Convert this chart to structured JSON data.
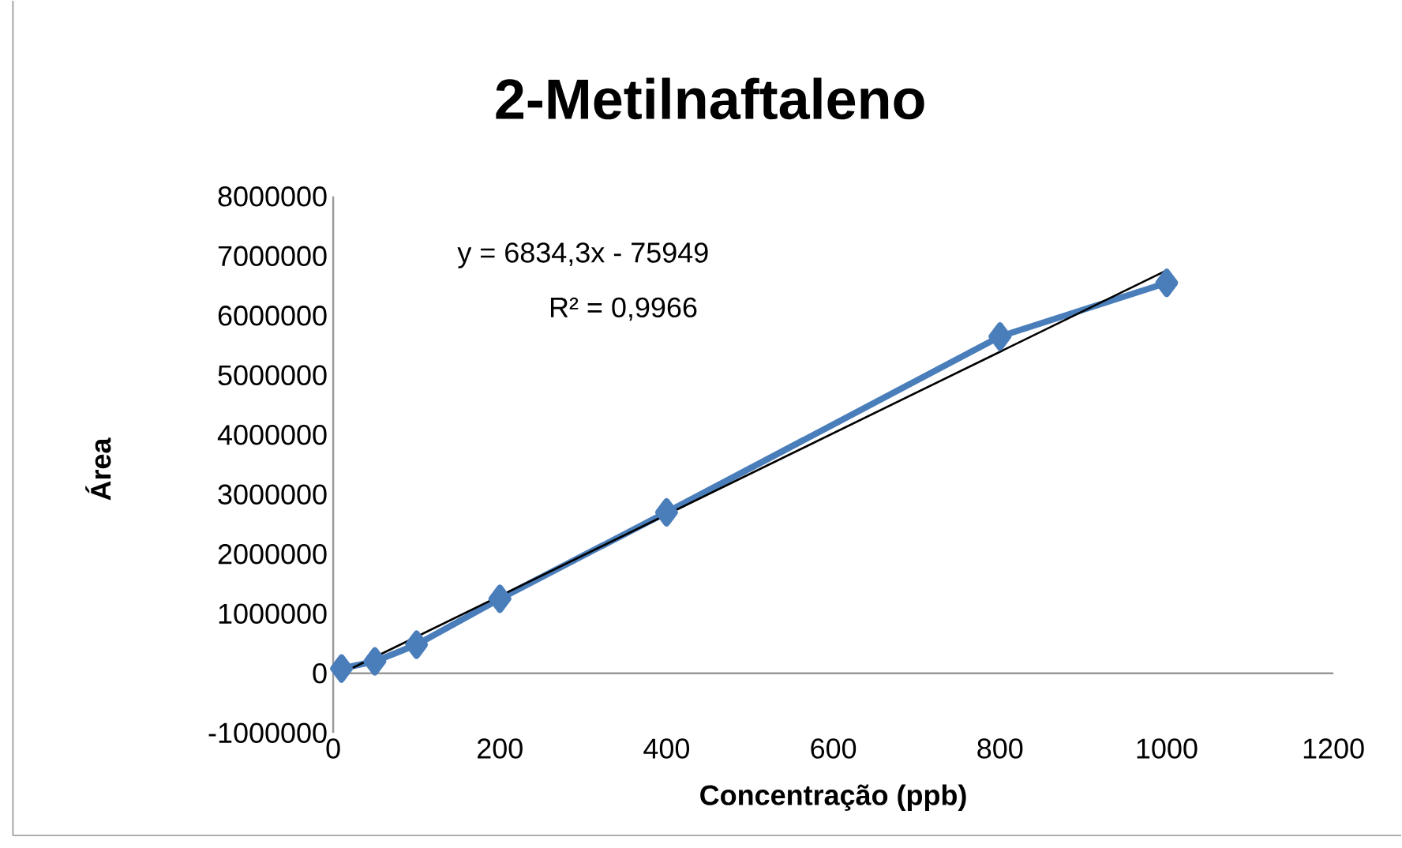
{
  "chart_data": {
    "type": "line",
    "title": "2-Metilnaftaleno",
    "xlabel": "Concentração (ppb)",
    "ylabel": "Área",
    "annotations": [
      "y = 6834,3x - 75949",
      "R² = 0,9966"
    ],
    "x": [
      10,
      50,
      100,
      200,
      400,
      800,
      1000
    ],
    "series": [
      {
        "color": "#4a7ebb",
        "values": [
          80000,
          200000,
          480000,
          1250000,
          2700000,
          5650000,
          6550000
        ],
        "marker": "diamond"
      },
      {
        "type": "line",
        "color": "#000000",
        "x": [
          10,
          1000
        ],
        "values": [
          0,
          6760000
        ],
        "marker": "none"
      }
    ],
    "xlim": [
      0,
      1200
    ],
    "xticks": [
      0,
      200,
      400,
      600,
      800,
      1000,
      1200
    ],
    "ylim": [
      -1000000,
      8000000
    ],
    "yticks": [
      -1000000,
      0,
      1000000,
      2000000,
      3000000,
      4000000,
      5000000,
      6000000,
      7000000,
      8000000
    ],
    "grid": false
  }
}
